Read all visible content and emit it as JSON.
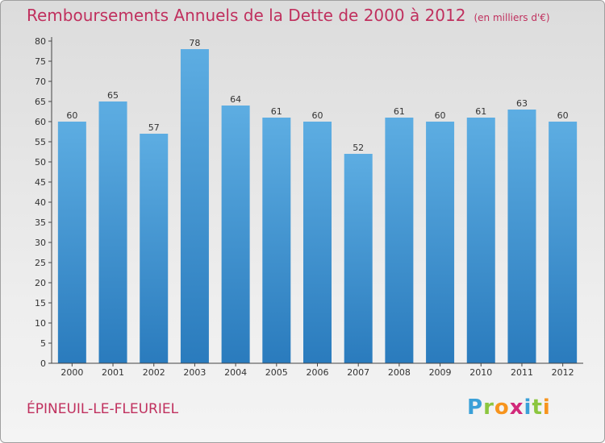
{
  "header": {
    "title": "Remboursements Annuels de la Dette de 2000 à 2012",
    "subtitle": "(en milliers d'€)"
  },
  "footer": {
    "commune": "ÉPINEUIL-LE-FLEURIEL",
    "brand_letters": [
      "P",
      "r",
      "o",
      "x",
      "i",
      "t",
      "i"
    ],
    "brand_colors": [
      "#3aa0d8",
      "#8cc63f",
      "#f7941d",
      "#d2297a",
      "#3aa0d8",
      "#8cc63f",
      "#f7941d"
    ]
  },
  "chart_data": {
    "type": "bar",
    "title": "Remboursements Annuels de la Dette de 2000 à 2012",
    "subtitle": "(en milliers d'€)",
    "categories": [
      "2000",
      "2001",
      "2002",
      "2003",
      "2004",
      "2005",
      "2006",
      "2007",
      "2008",
      "2009",
      "2010",
      "2011",
      "2012"
    ],
    "values": [
      60,
      65,
      57,
      78,
      64,
      61,
      60,
      52,
      61,
      60,
      61,
      63,
      60
    ],
    "ylim": [
      0,
      80
    ],
    "yticks": [
      0,
      5,
      10,
      15,
      20,
      25,
      30,
      35,
      40,
      45,
      50,
      55,
      60,
      65,
      70,
      75,
      80
    ],
    "xlabel": "",
    "ylabel": "",
    "grid": false,
    "bar_color_top": "#5dade2",
    "bar_color_bottom": "#2a7bbd"
  }
}
